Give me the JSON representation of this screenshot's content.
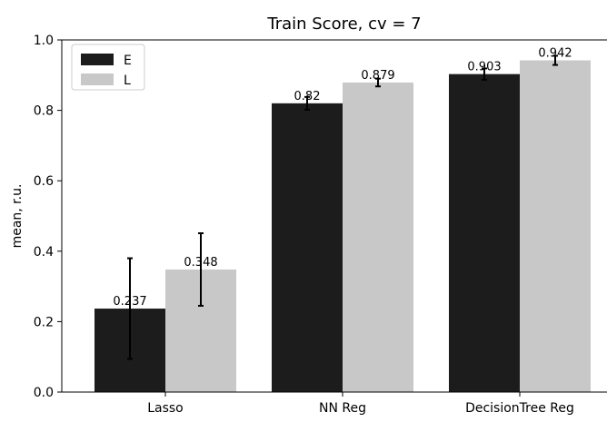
{
  "chart_data": {
    "type": "bar",
    "title": "Train Score, cv = 7",
    "xlabel": "",
    "ylabel": "mean, r.u.",
    "ylim": [
      0.0,
      1.0
    ],
    "yticks": [
      "0.0",
      "0.2",
      "0.4",
      "0.6",
      "0.8",
      "1.0"
    ],
    "categories": [
      "Lasso",
      "NN Reg",
      "DecisionTree Reg"
    ],
    "grid": false,
    "legend_position": "top-left",
    "series": [
      {
        "name": "E",
        "color": "#1c1c1c",
        "values": [
          0.237,
          0.82,
          0.903
        ],
        "labels": [
          "0.237",
          "0.82",
          "0.903"
        ],
        "errors": [
          0.143,
          0.018,
          0.016
        ]
      },
      {
        "name": "L",
        "color": "#c8c8c8",
        "values": [
          0.348,
          0.879,
          0.942
        ],
        "labels": [
          "0.348",
          "0.879",
          "0.942"
        ],
        "errors": [
          0.103,
          0.011,
          0.013
        ]
      }
    ]
  }
}
